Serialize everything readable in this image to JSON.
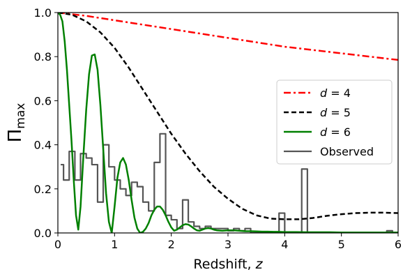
{
  "chart_data": {
    "type": "line",
    "xlabel": "Redshift, z",
    "ylabel": "Π_max",
    "xlim": [
      0,
      6
    ],
    "ylim": [
      0,
      1
    ],
    "xticks": [
      "0",
      "1",
      "2",
      "3",
      "4",
      "5",
      "6"
    ],
    "yticks": [
      "0.0",
      "0.2",
      "0.4",
      "0.6",
      "0.8",
      "1.0"
    ],
    "grid": false,
    "legend_position": "center-right",
    "series": [
      {
        "name": "d = 4",
        "color": "#ff0000",
        "style": "dashdot",
        "x": [
          0,
          0.5,
          1,
          1.5,
          2,
          2.5,
          3,
          3.5,
          4,
          4.5,
          5,
          5.5,
          6
        ],
        "y": [
          1.0,
          0.985,
          0.965,
          0.945,
          0.925,
          0.905,
          0.885,
          0.865,
          0.845,
          0.83,
          0.815,
          0.8,
          0.785
        ]
      },
      {
        "name": "d = 5",
        "color": "#000000",
        "style": "dashed",
        "x": [
          0,
          0.25,
          0.5,
          0.75,
          1,
          1.25,
          1.5,
          1.75,
          2,
          2.25,
          2.5,
          2.75,
          3,
          3.25,
          3.5,
          3.75,
          4,
          4.25,
          4.5,
          4.75,
          5,
          5.25,
          5.5,
          5.75,
          6
        ],
        "y": [
          1.0,
          0.99,
          0.96,
          0.91,
          0.84,
          0.75,
          0.65,
          0.55,
          0.45,
          0.36,
          0.28,
          0.21,
          0.155,
          0.11,
          0.08,
          0.065,
          0.062,
          0.062,
          0.068,
          0.078,
          0.085,
          0.09,
          0.092,
          0.092,
          0.09
        ]
      },
      {
        "name": "d = 6",
        "color": "#008000",
        "style": "solid",
        "x": [
          0,
          0.04,
          0.08,
          0.12,
          0.16,
          0.2,
          0.24,
          0.28,
          0.32,
          0.36,
          0.4,
          0.45,
          0.5,
          0.55,
          0.6,
          0.65,
          0.7,
          0.75,
          0.8,
          0.85,
          0.9,
          0.95,
          1.0,
          1.05,
          1.1,
          1.15,
          1.2,
          1.25,
          1.3,
          1.35,
          1.4,
          1.45,
          1.5,
          1.55,
          1.6,
          1.65,
          1.7,
          1.75,
          1.8,
          1.85,
          1.9,
          1.95,
          2.0,
          2.05,
          2.1,
          2.15,
          2.2,
          2.25,
          2.3,
          2.35,
          2.4,
          2.45,
          2.5,
          2.55,
          2.6,
          2.65,
          2.7,
          2.75,
          2.8,
          2.9,
          3.0,
          3.1,
          3.2,
          3.3,
          3.4,
          3.5,
          3.6,
          3.7,
          3.8,
          3.9,
          4.0,
          4.2,
          4.4,
          4.6,
          4.8,
          5.0,
          5.5,
          6.0
        ],
        "y": [
          1.0,
          0.99,
          0.96,
          0.87,
          0.74,
          0.58,
          0.42,
          0.24,
          0.08,
          0.015,
          0.12,
          0.35,
          0.56,
          0.72,
          0.805,
          0.81,
          0.74,
          0.58,
          0.38,
          0.18,
          0.05,
          0.0,
          0.12,
          0.25,
          0.32,
          0.34,
          0.31,
          0.24,
          0.15,
          0.07,
          0.02,
          0.0,
          0.005,
          0.02,
          0.045,
          0.08,
          0.105,
          0.12,
          0.12,
          0.105,
          0.08,
          0.05,
          0.025,
          0.01,
          0.015,
          0.025,
          0.035,
          0.04,
          0.038,
          0.03,
          0.02,
          0.012,
          0.01,
          0.015,
          0.02,
          0.022,
          0.02,
          0.015,
          0.012,
          0.01,
          0.012,
          0.012,
          0.01,
          0.008,
          0.008,
          0.007,
          0.006,
          0.006,
          0.005,
          0.005,
          0.004,
          0.004,
          0.003,
          0.003,
          0.003,
          0.002,
          0.002,
          0.002
        ]
      },
      {
        "name": "Observed",
        "color": "#555555",
        "style": "step",
        "bins": [
          [
            0.05,
            0.1,
            0.31
          ],
          [
            0.1,
            0.2,
            0.24
          ],
          [
            0.2,
            0.3,
            0.37
          ],
          [
            0.3,
            0.4,
            0.24
          ],
          [
            0.4,
            0.5,
            0.36
          ],
          [
            0.5,
            0.6,
            0.34
          ],
          [
            0.6,
            0.7,
            0.31
          ],
          [
            0.7,
            0.8,
            0.14
          ],
          [
            0.8,
            0.9,
            0.4
          ],
          [
            0.9,
            1.0,
            0.3
          ],
          [
            1.0,
            1.1,
            0.24
          ],
          [
            1.1,
            1.2,
            0.2
          ],
          [
            1.2,
            1.3,
            0.17
          ],
          [
            1.3,
            1.4,
            0.23
          ],
          [
            1.4,
            1.5,
            0.21
          ],
          [
            1.5,
            1.6,
            0.14
          ],
          [
            1.6,
            1.7,
            0.1
          ],
          [
            1.7,
            1.8,
            0.32
          ],
          [
            1.8,
            1.9,
            0.45
          ],
          [
            1.9,
            2.0,
            0.08
          ],
          [
            2.0,
            2.1,
            0.06
          ],
          [
            2.1,
            2.2,
            0.02
          ],
          [
            2.2,
            2.3,
            0.15
          ],
          [
            2.3,
            2.4,
            0.05
          ],
          [
            2.4,
            2.5,
            0.03
          ],
          [
            2.5,
            2.6,
            0.02
          ],
          [
            2.6,
            2.7,
            0.03
          ],
          [
            2.7,
            2.8,
            0.02
          ],
          [
            2.8,
            2.9,
            0.02
          ],
          [
            2.9,
            3.0,
            0.02
          ],
          [
            3.0,
            3.1,
            0.01
          ],
          [
            3.1,
            3.2,
            0.02
          ],
          [
            3.2,
            3.3,
            0.01
          ],
          [
            3.3,
            3.4,
            0.02
          ],
          [
            3.4,
            3.9,
            0.0
          ],
          [
            3.9,
            4.0,
            0.09
          ],
          [
            4.0,
            4.3,
            0.0
          ],
          [
            4.3,
            4.4,
            0.29
          ],
          [
            4.4,
            5.8,
            0.0
          ],
          [
            5.8,
            5.9,
            0.01
          ],
          [
            5.9,
            6.0,
            0.0
          ]
        ]
      }
    ]
  }
}
